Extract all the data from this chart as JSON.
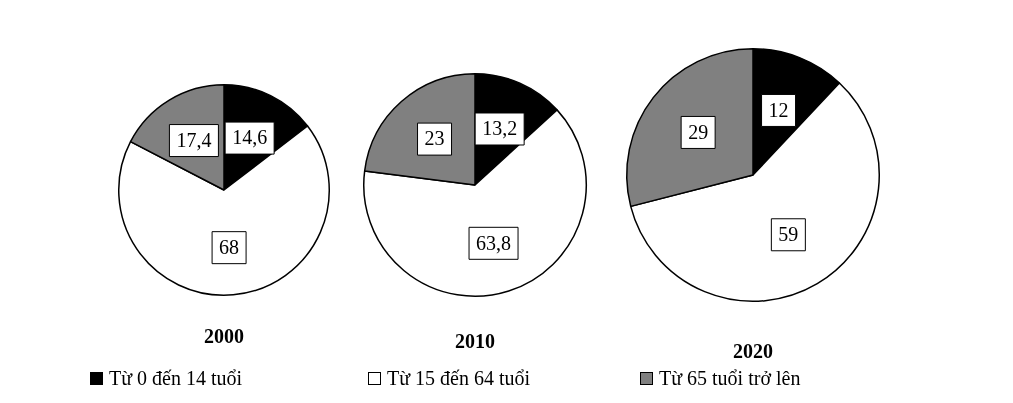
{
  "chart_data": [
    {
      "type": "pie",
      "title": "2000",
      "categories": [
        "Từ 0 đến 14 tuổi",
        "Từ 15 đến 64 tuổi",
        "Từ 65 tuổi trở lên"
      ],
      "values": [
        14.6,
        68,
        17.4
      ],
      "colors": [
        "#000000",
        "#ffffff",
        "#808080"
      ],
      "value_labels": [
        "14,6",
        "68",
        "17,4"
      ],
      "legend": "bottom"
    },
    {
      "type": "pie",
      "title": "2010",
      "categories": [
        null,
        null,
        null
      ],
      "values": [
        13.2,
        63.8,
        23
      ],
      "colors": [
        "#000000",
        "#ffffff",
        "#808080"
      ],
      "value_labels": [
        "13,2",
        "63,8",
        "23"
      ]
    },
    {
      "type": "pie",
      "title": "2020",
      "categories": [
        null,
        null,
        null
      ],
      "values": [
        12,
        59,
        29
      ],
      "colors": [
        "#000000",
        "#ffffff",
        "#808080"
      ],
      "value_labels": [
        "12",
        "59",
        "29"
      ]
    }
  ]
}
